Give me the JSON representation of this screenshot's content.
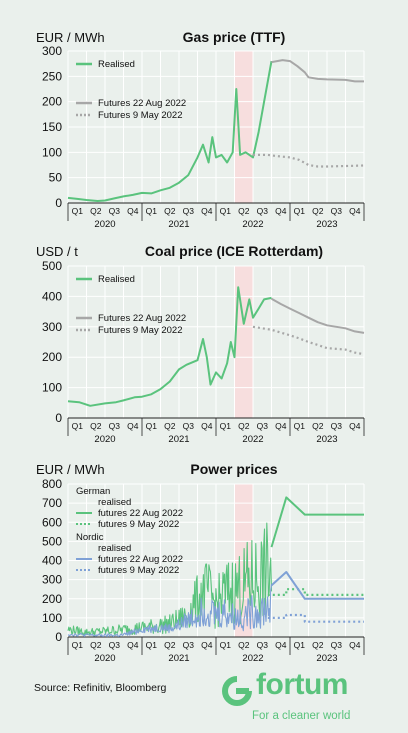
{
  "chart_data": [
    {
      "type": "line",
      "title": "Gas price (TTF)",
      "ylabel": "EUR / MWh",
      "ylim": [
        0,
        300
      ],
      "yticks": [
        0,
        50,
        100,
        150,
        200,
        250,
        300
      ],
      "quarters": [
        "Q1",
        "Q2",
        "Q3",
        "Q4",
        "Q1",
        "Q2",
        "Q3",
        "Q4",
        "Q1",
        "Q2",
        "Q3",
        "Q4",
        "Q1",
        "Q2",
        "Q3",
        "Q4"
      ],
      "years": [
        "2020",
        "2021",
        "2022",
        "2023"
      ],
      "x_unit": "quarter index (0 = start of Q1 2020, 16 = end of Q4 2023)",
      "highlight": [
        9,
        10
      ],
      "grid": true,
      "legend_position": "top-left",
      "series": [
        {
          "name": "Realised",
          "style": "solid",
          "color": "#5ac37d",
          "x": [
            0,
            0.5,
            1,
            1.3,
            1.6,
            2,
            2.5,
            3,
            3.5,
            4,
            4.5,
            5,
            5.5,
            6,
            6.5,
            7,
            7.3,
            7.6,
            7.8,
            8,
            8.3,
            8.6,
            8.9,
            9.1,
            9.3,
            9.6,
            10,
            10.3,
            10.6,
            11
          ],
          "y": [
            10,
            8,
            6,
            5,
            4,
            5,
            9,
            13,
            16,
            20,
            19,
            25,
            30,
            40,
            55,
            90,
            115,
            80,
            130,
            90,
            95,
            80,
            100,
            225,
            95,
            100,
            90,
            140,
            200,
            280
          ]
        },
        {
          "name": "Futures 22 Aug 2022",
          "style": "solid",
          "color": "#a7a7a7",
          "x": [
            11,
            11.6,
            12,
            12.4,
            12.8,
            13,
            13.5,
            14,
            15,
            15.5,
            16
          ],
          "y": [
            278,
            282,
            280,
            270,
            258,
            248,
            245,
            244,
            243,
            240,
            240
          ]
        },
        {
          "name": "Futures 9 May 2022",
          "style": "dotted",
          "color": "#a7a7a7",
          "x": [
            10,
            10.8,
            11.2,
            12,
            12.5,
            13,
            13.5,
            14,
            15,
            16
          ],
          "y": [
            95,
            95,
            93,
            90,
            85,
            75,
            72,
            72,
            73,
            74
          ]
        }
      ]
    },
    {
      "type": "line",
      "title": "Coal price (ICE Rotterdam)",
      "ylabel": "USD / t",
      "ylim": [
        0,
        500
      ],
      "yticks": [
        0,
        100,
        200,
        300,
        400,
        500
      ],
      "quarters": [
        "Q1",
        "Q2",
        "Q3",
        "Q4",
        "Q1",
        "Q2",
        "Q3",
        "Q4",
        "Q1",
        "Q2",
        "Q3",
        "Q4",
        "Q1",
        "Q2",
        "Q3",
        "Q4"
      ],
      "years": [
        "2020",
        "2021",
        "2022",
        "2023"
      ],
      "x_unit": "quarter index (0 = start of Q1 2020, 16 = end of Q4 2023)",
      "highlight": [
        9,
        10
      ],
      "grid": true,
      "legend_position": "top-left",
      "series": [
        {
          "name": "Realised",
          "style": "solid",
          "color": "#5ac37d",
          "x": [
            0,
            0.6,
            1.2,
            2,
            2.6,
            3,
            3.6,
            4,
            4.5,
            5,
            5.5,
            6,
            6.4,
            7,
            7.3,
            7.5,
            7.7,
            8,
            8.3,
            8.6,
            8.8,
            9,
            9.2,
            9.5,
            9.8,
            10,
            10.3,
            10.6,
            11
          ],
          "y": [
            55,
            52,
            40,
            48,
            52,
            58,
            68,
            70,
            78,
            95,
            120,
            160,
            175,
            190,
            260,
            200,
            110,
            150,
            130,
            180,
            250,
            200,
            430,
            310,
            390,
            330,
            360,
            390,
            395
          ]
        },
        {
          "name": "Futures 22 Aug 2022",
          "style": "solid",
          "color": "#a7a7a7",
          "x": [
            11,
            11.5,
            12,
            12.5,
            13,
            13.5,
            14,
            15,
            15.5,
            16
          ],
          "y": [
            392,
            375,
            360,
            345,
            330,
            315,
            305,
            295,
            285,
            280
          ]
        },
        {
          "name": "Futures 9 May 2022",
          "style": "dotted",
          "color": "#a7a7a7",
          "x": [
            10,
            11,
            12,
            12.5,
            13,
            13.5,
            14,
            15,
            15.5,
            16
          ],
          "y": [
            300,
            290,
            272,
            262,
            250,
            240,
            230,
            225,
            215,
            210
          ]
        }
      ]
    },
    {
      "type": "line",
      "title": "Power prices",
      "ylabel": "EUR / MWh",
      "ylim": [
        0,
        800
      ],
      "yticks": [
        0,
        100,
        200,
        300,
        400,
        500,
        600,
        700,
        800
      ],
      "quarters": [
        "Q1",
        "Q2",
        "Q3",
        "Q4",
        "Q1",
        "Q2",
        "Q3",
        "Q4",
        "Q1",
        "Q2",
        "Q3",
        "Q4",
        "Q1",
        "Q2",
        "Q3",
        "Q4"
      ],
      "years": [
        "2020",
        "2021",
        "2022",
        "2023"
      ],
      "x_unit": "quarter index (0 = start of Q1 2020, 16 = end of Q4 2023)",
      "highlight": [
        9,
        10
      ],
      "grid": true,
      "legend_position": "top-left",
      "legend_groups": [
        {
          "title": "German",
          "items": [
            "realised",
            "futures 22 Aug 2022",
            "futures 9 May 2022"
          ]
        },
        {
          "title": "Nordic",
          "items": [
            "realised",
            "futures 22 Aug 2022",
            "futures 9 May 2022"
          ]
        }
      ],
      "series": [
        {
          "name": "German realised",
          "style": "solid",
          "color": "#5ac37d",
          "x": [
            0,
            1,
            2,
            3,
            4,
            5,
            5.5,
            6,
            6.5,
            7,
            7.5,
            8,
            8.5,
            9,
            9.5,
            10,
            10.5,
            11
          ],
          "y": [
            40,
            25,
            30,
            40,
            50,
            60,
            70,
            90,
            120,
            200,
            250,
            170,
            230,
            250,
            270,
            300,
            320,
            350
          ],
          "volatility": [
            25,
            20,
            25,
            30,
            35,
            45,
            50,
            60,
            80,
            130,
            160,
            130,
            170,
            190,
            210,
            230,
            250,
            280
          ]
        },
        {
          "name": "German futures 22 Aug 2022",
          "style": "solid",
          "color": "#5ac37d",
          "x": [
            11,
            11,
            11.8,
            11.8,
            12.8,
            12.8,
            16
          ],
          "y": [
            470,
            470,
            730,
            730,
            640,
            640,
            640
          ]
        },
        {
          "name": "German futures 9 May 2022",
          "style": "dotted",
          "color": "#5ac37d",
          "x": [
            10.8,
            11.8,
            11.8,
            12.8,
            12.8,
            16
          ],
          "y": [
            220,
            220,
            250,
            250,
            220,
            220
          ]
        },
        {
          "name": "Nordic realised",
          "style": "solid",
          "color": "#7fa1d6",
          "x": [
            0,
            1,
            2,
            3,
            4,
            5,
            5.5,
            6,
            6.5,
            7,
            7.5,
            8,
            8.5,
            9,
            9.5,
            10,
            10.5,
            11
          ],
          "y": [
            15,
            10,
            8,
            10,
            40,
            50,
            45,
            60,
            90,
            120,
            150,
            120,
            130,
            100,
            110,
            130,
            140,
            170
          ],
          "volatility": [
            10,
            8,
            8,
            10,
            20,
            25,
            25,
            35,
            50,
            70,
            90,
            80,
            90,
            70,
            80,
            90,
            100,
            110
          ]
        },
        {
          "name": "Nordic futures 22 Aug 2022",
          "style": "solid",
          "color": "#7fa1d6",
          "x": [
            11,
            11,
            11.8,
            11.8,
            12.8,
            12.8,
            16
          ],
          "y": [
            270,
            270,
            340,
            340,
            200,
            200,
            200
          ]
        },
        {
          "name": "Nordic futures 9 May 2022",
          "style": "dotted",
          "color": "#7fa1d6",
          "x": [
            10.8,
            11.8,
            11.8,
            12.8,
            12.8,
            16
          ],
          "y": [
            100,
            100,
            115,
            115,
            80,
            80
          ]
        }
      ]
    }
  ],
  "footer": {
    "source": "Source: Refinitiv, Bloomberg",
    "brand": "fortum",
    "tagline": "For a cleaner world"
  },
  "colors": {
    "background": "#eaf0ec",
    "grid": "#ffffff",
    "highlight": "#f7dede",
    "green": "#5ac37d",
    "grey": "#a7a7a7",
    "blue": "#7fa1d6"
  }
}
